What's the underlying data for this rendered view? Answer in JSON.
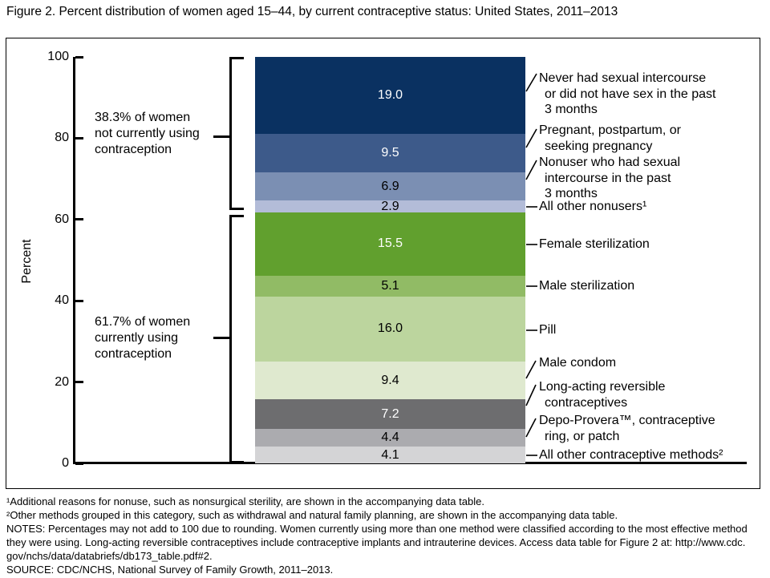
{
  "figure": {
    "title": "Figure 2. Percent distribution of women aged 15–44, by current contraceptive status: United States, 2011–2013"
  },
  "chart_data": {
    "type": "bar",
    "variant": "single-stacked-column",
    "title": "Percent distribution of women aged 15–44, by current contraceptive status: United States, 2011–2013",
    "ylabel": "Percent",
    "ylim": [
      0,
      100
    ],
    "yticks": [
      100,
      80,
      60,
      40,
      20,
      0
    ],
    "segments": [
      {
        "label": "Never had sexual intercourse\nor did not have sex in the past\n3 months",
        "value": 19.0,
        "color": "#0a3161",
        "value_text_color": "#ffffff"
      },
      {
        "label": "Pregnant, postpartum, or\nseeking pregnancy",
        "value": 9.5,
        "color": "#3d5a8a",
        "value_text_color": "#ffffff"
      },
      {
        "label": "Nonuser who had sexual\nintercourse in the past\n3 months",
        "value": 6.9,
        "color": "#7b8fb3",
        "value_text_color": "#000000"
      },
      {
        "label": "All other nonusers¹",
        "value": 2.9,
        "color": "#b3bcd8",
        "value_text_color": "#000000"
      },
      {
        "label": "Female sterilization",
        "value": 15.5,
        "color": "#61a02e",
        "value_text_color": "#ffffff"
      },
      {
        "label": "Male sterilization",
        "value": 5.1,
        "color": "#91bb65",
        "value_text_color": "#000000"
      },
      {
        "label": "Pill",
        "value": 16.0,
        "color": "#bcd59e",
        "value_text_color": "#000000"
      },
      {
        "label": "Male condom",
        "value": 9.4,
        "color": "#dfe9cf",
        "value_text_color": "#000000"
      },
      {
        "label": "Long-acting reversible\ncontraceptives",
        "value": 7.2,
        "color": "#6d6d6f",
        "value_text_color": "#ffffff"
      },
      {
        "label": "Depo-Provera™, contraceptive\nring, or patch",
        "value": 4.4,
        "color": "#ababaf",
        "value_text_color": "#000000"
      },
      {
        "label": "All other contraceptive methods²",
        "value": 4.1,
        "color": "#d4d4d6",
        "value_text_color": "#000000"
      }
    ],
    "group_annotations": [
      {
        "text": "38.3% of women\nnot currently using\ncontraception",
        "total": 38.3
      },
      {
        "text": "61.7% of women\ncurrently using\ncontraception",
        "total": 61.7
      }
    ],
    "legend_position": "right",
    "grid": false
  },
  "footnotes": [
    "¹Additional reasons for nonuse, such as nonsurgical sterility, are shown in the accompanying data table.",
    "²Other methods grouped in this category, such as withdrawal and natural family planning, are shown in the accompanying data table.",
    "NOTES: Percentages may not add to 100 due to rounding. Women currently using more than one method were classified according to the most effective method\nthey were using. Long-acting reversible contraceptives include contraceptive implants and intrauterine devices. Access data table for Figure 2 at: http://www.cdc.\ngov/nchs/data/databriefs/db173_table.pdf#2.",
    "SOURCE: CDC/NCHS, National Survey of Family Growth, 2011–2013."
  ]
}
